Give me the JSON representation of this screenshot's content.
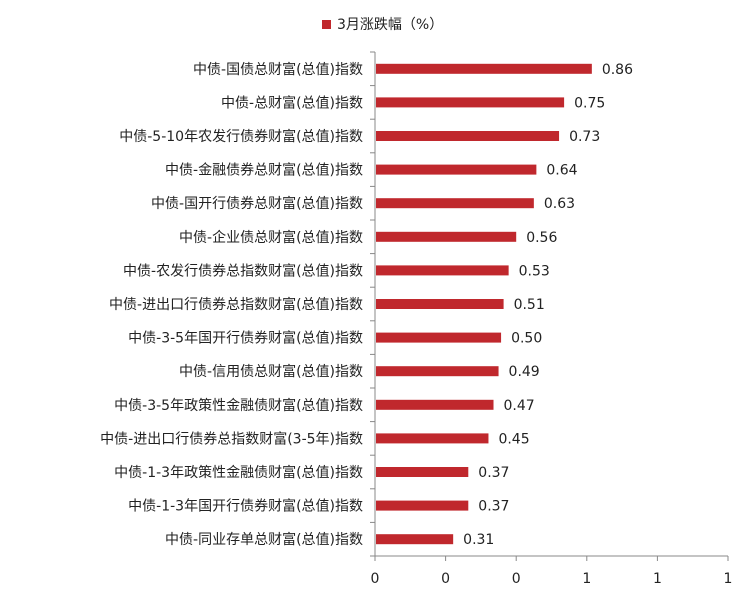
{
  "chart_data": {
    "type": "bar",
    "orientation": "horizontal",
    "title": "",
    "xlabel": "",
    "ylabel": "",
    "legend_position": "top",
    "grid": false,
    "xlim": [
      0,
      1.4
    ],
    "x_tick_labels": [
      "0",
      "0",
      "0",
      "1",
      "1",
      "1"
    ],
    "categories": [
      "中债-国债总财富(总值)指数",
      "中债-总财富(总值)指数",
      "中债-5-10年农发行债券财富(总值)指数",
      "中债-金融债券总财富(总值)指数",
      "中债-国开行债券总财富(总值)指数",
      "中债-企业债总财富(总值)指数",
      "中债-农发行债券总指数财富(总值)指数",
      "中债-进出口行债券总指数财富(总值)指数",
      "中债-3-5年国开行债券财富(总值)指数",
      "中债-信用债总财富(总值)指数",
      "中债-3-5年政策性金融债财富(总值)指数",
      "中债-进出口行债券总指数财富(3-5年)指数",
      "中债-1-3年政策性金融债财富(总值)指数",
      "中债-1-3年国开行债券财富(总值)指数",
      "中债-同业存单总财富(总值)指数"
    ],
    "series": [
      {
        "name": "3月涨跌幅（%）",
        "color": "#c0282d",
        "values": [
          0.86,
          0.75,
          0.73,
          0.64,
          0.63,
          0.56,
          0.53,
          0.51,
          0.5,
          0.49,
          0.47,
          0.45,
          0.37,
          0.37,
          0.31
        ],
        "labels": [
          "0.86",
          "0.75",
          "0.73",
          "0.64",
          "0.63",
          "0.56",
          "0.53",
          "0.51",
          "0.50",
          "0.49",
          "0.47",
          "0.45",
          "0.37",
          "0.37",
          "0.31"
        ]
      }
    ]
  }
}
